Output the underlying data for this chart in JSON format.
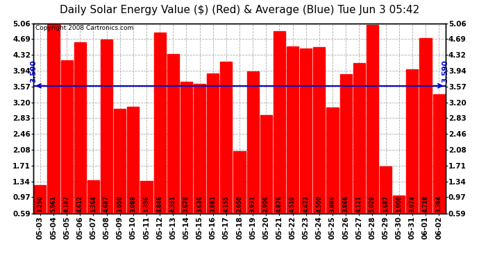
{
  "title": "Daily Solar Energy Value ($) (Red) & Average (Blue) Tue Jun 3 05:42",
  "copyright": "Copyright 2008 Cartronics.com",
  "categories": [
    "05-03",
    "05-04",
    "05-05",
    "05-06",
    "05-07",
    "05-08",
    "05-09",
    "05-10",
    "05-11",
    "05-12",
    "05-13",
    "05-14",
    "05-15",
    "05-16",
    "05-17",
    "05-18",
    "05-19",
    "05-20",
    "05-21",
    "05-22",
    "05-23",
    "05-24",
    "05-25",
    "05-26",
    "05-27",
    "05-28",
    "05-29",
    "05-30",
    "05-31",
    "06-01",
    "06-02"
  ],
  "values": [
    1.25,
    5.061,
    4.187,
    4.612,
    1.364,
    4.687,
    3.05,
    3.089,
    1.356,
    4.846,
    4.331,
    3.678,
    3.636,
    3.881,
    4.155,
    2.05,
    3.931,
    2.906,
    4.876,
    4.51,
    4.473,
    4.5,
    3.086,
    3.866,
    4.121,
    5.029,
    1.687,
    1.0,
    3.974,
    4.718,
    3.384
  ],
  "average": 3.59,
  "bar_color": "#ff0000",
  "avg_line_color": "#0000cc",
  "background_color": "#ffffff",
  "plot_bg_color": "#ffffff",
  "grid_color": "#aaaaaa",
  "ylim_min": 0.59,
  "ylim_max": 5.06,
  "yticks": [
    0.59,
    0.97,
    1.34,
    1.71,
    2.08,
    2.46,
    2.83,
    3.2,
    3.57,
    3.94,
    4.32,
    4.69,
    5.06
  ],
  "avg_label": "3.590",
  "title_fontsize": 11,
  "tick_fontsize": 7.5,
  "value_fontsize": 5.5,
  "copyright_fontsize": 6.5
}
